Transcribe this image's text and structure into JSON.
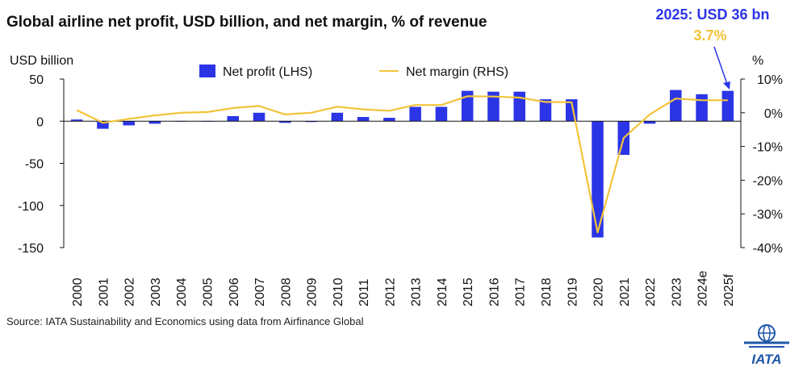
{
  "title": "Global airline net profit, USD billion, and net margin, % of revenue",
  "source": "Source: IATA Sustainability and Economics using data from Airfinance Global",
  "logo_text": "IATA",
  "colors": {
    "bar": "#2b35e6",
    "line": "#f2c43a",
    "callout_main": "#2b35e6",
    "callout_sub": "#f2c43a",
    "logo": "#1f57a8"
  },
  "callout": {
    "main": "2025: USD 36 bn",
    "sub": "3.7%"
  },
  "chart_data": {
    "type": "bar",
    "title": "Global airline net profit, USD billion, and net margin, % of revenue",
    "categories": [
      "2000",
      "2001",
      "2002",
      "2003",
      "2004",
      "2005",
      "2006",
      "2007",
      "2008",
      "2009",
      "2010",
      "2011",
      "2012",
      "2013",
      "2014",
      "2015",
      "2016",
      "2017",
      "2018",
      "2019",
      "2020",
      "2021",
      "2022",
      "2023",
      "2024e",
      "2025f"
    ],
    "left_axis": {
      "label": "USD billion",
      "ylim": [
        -150,
        50
      ],
      "ticks": [
        "50",
        "0",
        "-50",
        "-100",
        "-150"
      ],
      "tick_values": [
        50,
        0,
        -50,
        -100,
        -150
      ]
    },
    "right_axis": {
      "label": "%",
      "ylim": [
        -40,
        10
      ],
      "ticks": [
        "10%",
        "0%",
        "-10%",
        "-20%",
        "-30%",
        "-40%"
      ],
      "tick_values": [
        10,
        0,
        -10,
        -20,
        -30,
        -40
      ]
    },
    "grid": false,
    "legend_placement": "top",
    "series": [
      {
        "name": "Net profit (LHS)",
        "type": "bar",
        "axis": "left",
        "values": [
          2,
          -9,
          -5,
          -3,
          -0.5,
          -0.5,
          6,
          10,
          -2,
          -1,
          10,
          5,
          4,
          17,
          17,
          36,
          35,
          35,
          26,
          26,
          -138,
          -40,
          -3,
          37,
          32,
          36
        ]
      },
      {
        "name": "Net margin (RHS)",
        "type": "line",
        "axis": "right",
        "values": [
          0.8,
          -3.0,
          -1.8,
          -0.8,
          0,
          0.2,
          1.4,
          2.0,
          -0.5,
          0,
          1.8,
          1.0,
          0.6,
          2.3,
          2.3,
          4.9,
          4.8,
          4.5,
          3.2,
          3.1,
          -35.5,
          -7.5,
          -0.5,
          4.2,
          3.7,
          3.7
        ]
      }
    ]
  }
}
